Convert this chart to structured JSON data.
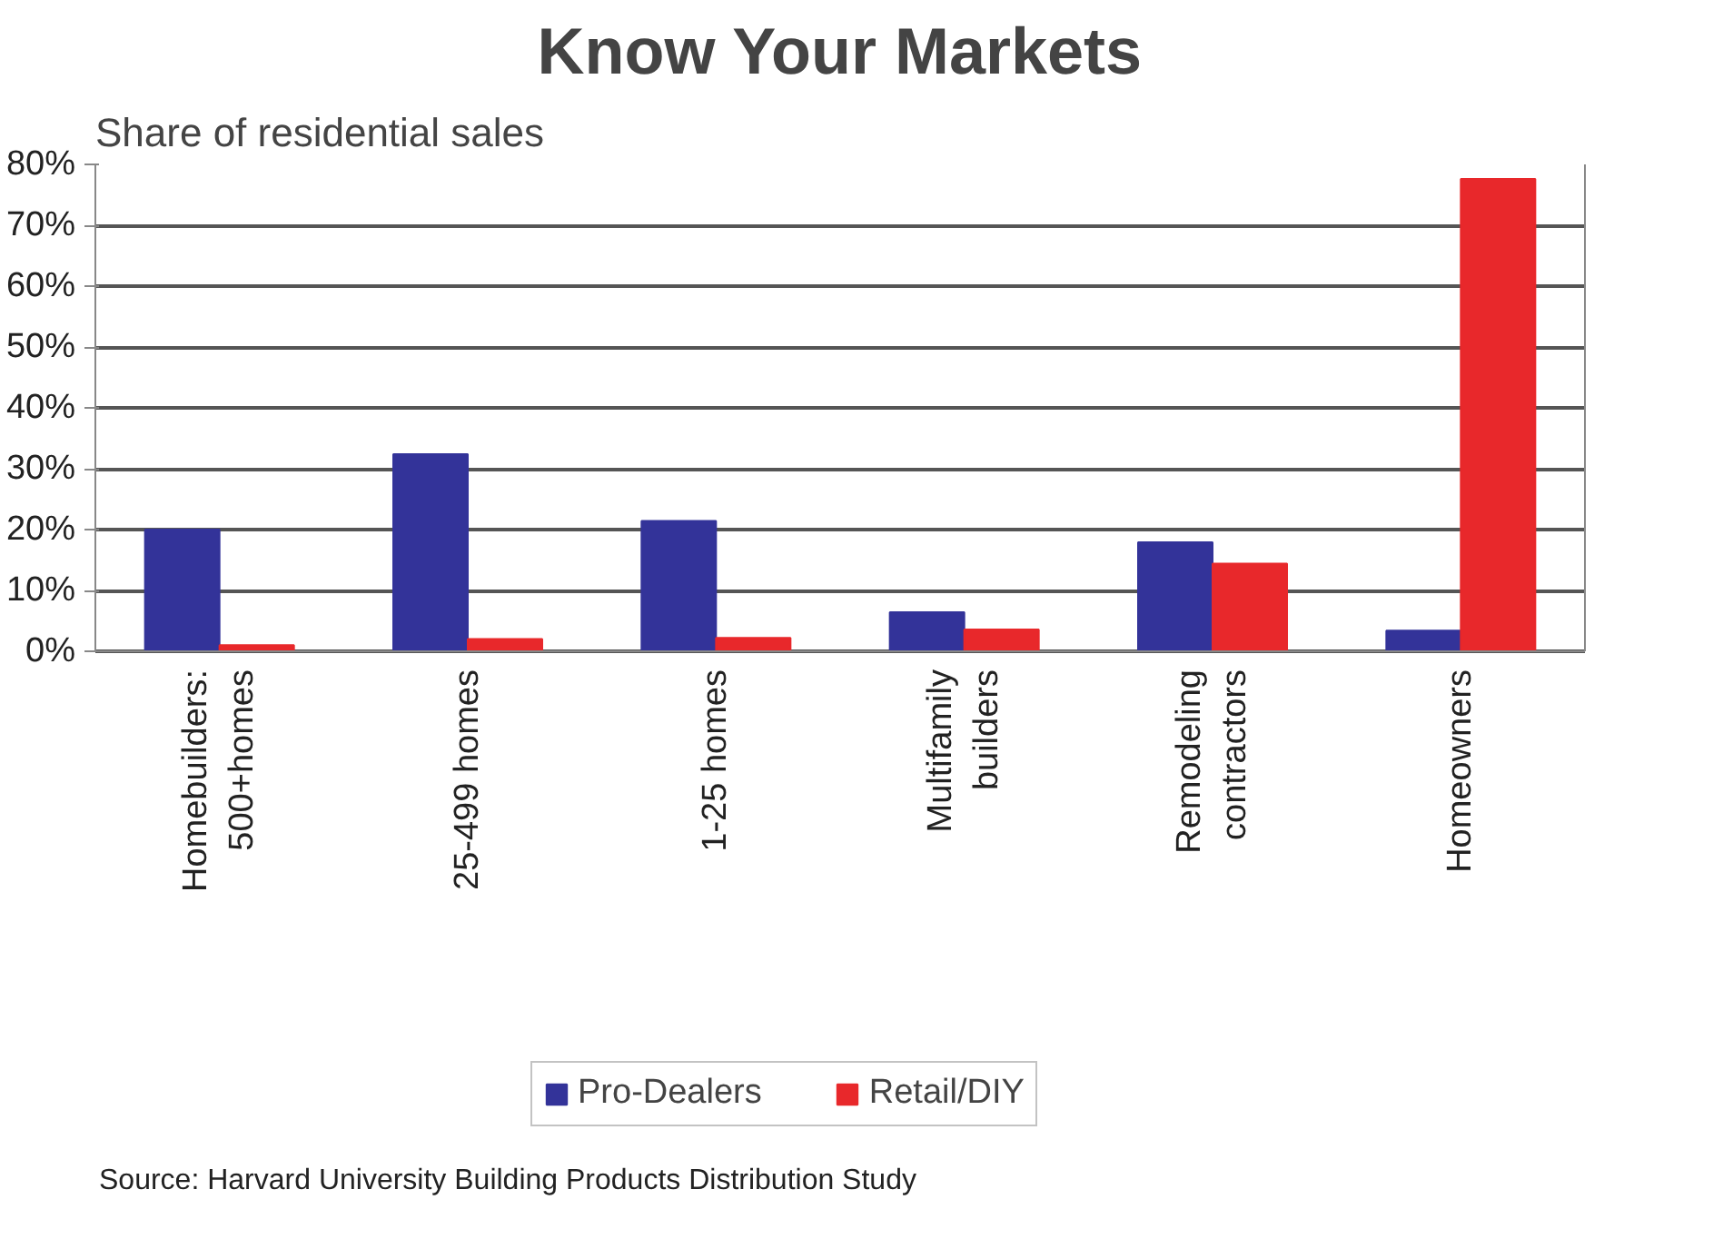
{
  "chart_data": {
    "type": "bar",
    "title": "Know Your Markets",
    "ylabel": "Share of residential sales",
    "categories": [
      "Homebuilders:\n500+homes",
      "25-499 homes",
      "1-25 homes",
      "Multifamily\nbuilders",
      "Remodeling\ncontractors",
      "Homeowners"
    ],
    "series": [
      {
        "name": "Pro-Dealers",
        "color": "#333399",
        "values": [
          20,
          32.4,
          21.4,
          6.4,
          17.9,
          3.4
        ]
      },
      {
        "name": "Retail/DIY",
        "color": "#e8282b",
        "values": [
          1,
          2,
          2.2,
          3.6,
          14.4,
          77.6
        ]
      }
    ],
    "ylim": [
      0,
      80
    ],
    "yticks": [
      {
        "value": 0,
        "label": "0%"
      },
      {
        "value": 10,
        "label": "10%"
      },
      {
        "value": 20,
        "label": "20%"
      },
      {
        "value": 30,
        "label": "30%"
      },
      {
        "value": 40,
        "label": "40%"
      },
      {
        "value": 50,
        "label": "50%"
      },
      {
        "value": 60,
        "label": "60%"
      },
      {
        "value": 70,
        "label": "70%"
      },
      {
        "value": 80,
        "label": "80%"
      }
    ],
    "grid": "y",
    "legend": "bottom",
    "annotations": [
      "Source: Harvard University Building Products Distribution Study"
    ]
  }
}
